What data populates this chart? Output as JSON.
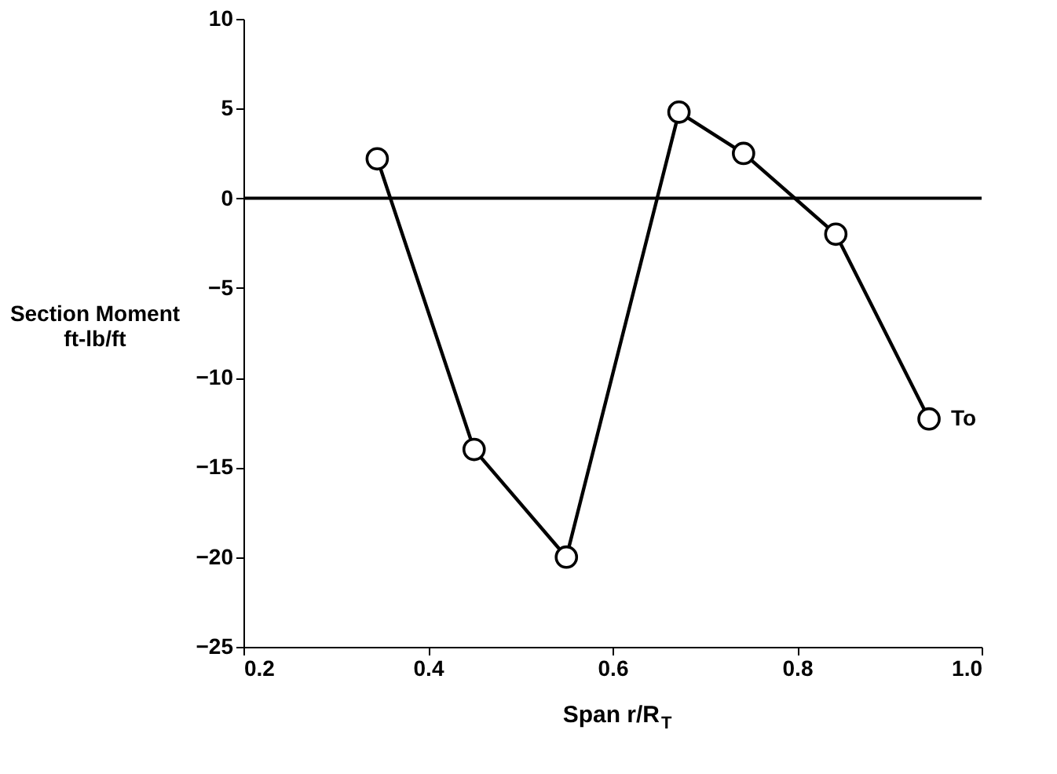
{
  "chart_data": {
    "type": "line",
    "xlabel": "Span r/R$_{T}$",
    "ylabel": "Section Moment\nft-lb/ft",
    "x": [
      0.345,
      0.45,
      0.55,
      0.672,
      0.742,
      0.842,
      0.943
    ],
    "series": [
      {
        "color": "#000000",
        "values": [
          2.2,
          -14,
          -20,
          4.8,
          2.5,
          -2,
          -12.3
        ]
      }
    ],
    "xlim": [
      0.2,
      1.0
    ],
    "xticks": [
      0.2,
      0.4,
      0.6,
      0.8,
      {
        "value": 1.0,
        "label": "1.0"
      }
    ],
    "ylim": [
      -25,
      10
    ],
    "yticks": [
      -25,
      -20,
      -15,
      -10,
      -5,
      0,
      5,
      10
    ],
    "ref_lines": [
      {
        "axis": "y",
        "value": 0,
        "color": "#000000"
      }
    ],
    "annotations": [
      {
        "text": "To",
        "x": 0.943,
        "y": -12.3
      }
    ],
    "marker": "circle",
    "line_style": "solid",
    "grid": false
  }
}
